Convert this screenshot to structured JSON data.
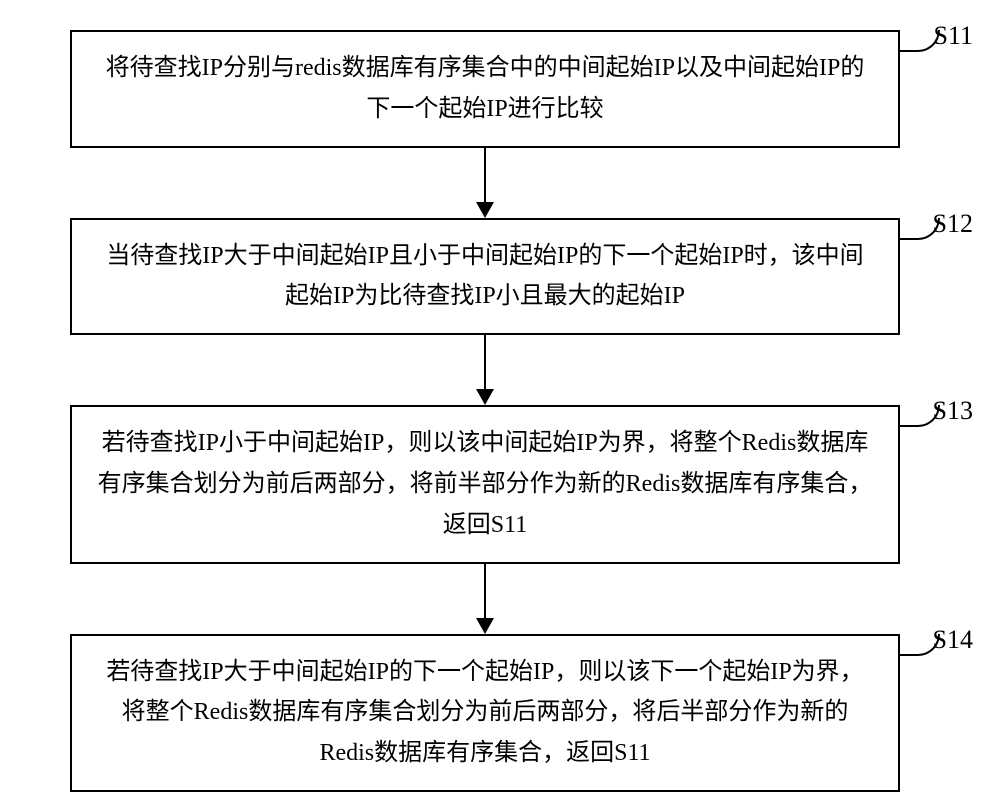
{
  "flowchart": {
    "type": "flowchart",
    "background_color": "#ffffff",
    "box_border_color": "#000000",
    "box_border_width": 2,
    "text_color": "#000000",
    "font_size": 24,
    "label_font_size": 26,
    "arrow_color": "#000000",
    "steps": [
      {
        "label": "S11",
        "text": "将待查找IP分别与redis数据库有序集合中的中间起始IP以及中间起始IP的下一个起始IP进行比较"
      },
      {
        "label": "S12",
        "text": "当待查找IP大于中间起始IP且小于中间起始IP的下一个起始IP时，该中间起始IP为比待查找IP小且最大的起始IP"
      },
      {
        "label": "S13",
        "text": "若待查找IP小于中间起始IP，则以该中间起始IP为界，将整个Redis数据库有序集合划分为前后两部分，将前半部分作为新的Redis数据库有序集合，返回S11"
      },
      {
        "label": "S14",
        "text": "若待查找IP大于中间起始IP的下一个起始IP，则以该下一个起始IP为界，将整个Redis数据库有序集合划分为前后两部分，将后半部分作为新的Redis数据库有序集合，返回S11"
      }
    ]
  }
}
